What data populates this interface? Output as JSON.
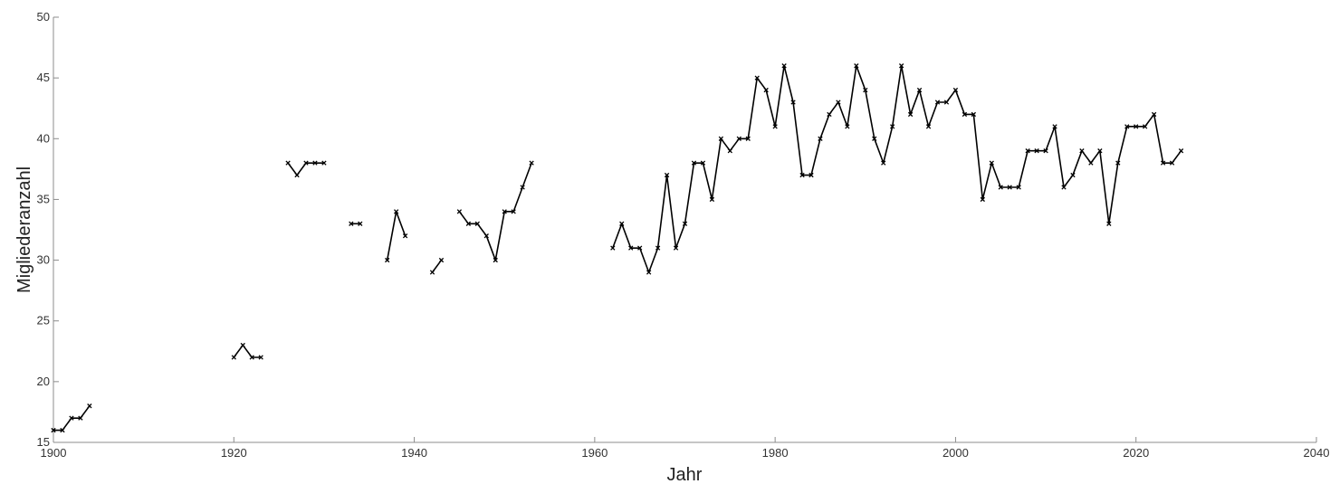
{
  "chart_data": {
    "type": "line",
    "title": "",
    "xlabel": "Jahr",
    "ylabel": "Migliederanzahl",
    "xlim": [
      1900,
      2040
    ],
    "ylim": [
      15,
      50
    ],
    "xticks": [
      1900,
      1920,
      1940,
      1960,
      1980,
      2000,
      2020,
      2040
    ],
    "yticks": [
      15,
      20,
      25,
      30,
      35,
      40,
      45,
      50
    ],
    "grid": false,
    "legend": "none",
    "line_color": "#000000",
    "marker": "x",
    "series": [
      {
        "segments": [
          [
            [
              1900,
              16
            ],
            [
              1901,
              16
            ],
            [
              1902,
              17
            ],
            [
              1903,
              17
            ],
            [
              1904,
              18
            ]
          ],
          [
            [
              1920,
              22
            ],
            [
              1921,
              23
            ],
            [
              1922,
              22
            ],
            [
              1923,
              22
            ]
          ],
          [
            [
              1926,
              38
            ],
            [
              1927,
              37
            ],
            [
              1928,
              38
            ],
            [
              1929,
              38
            ],
            [
              1930,
              38
            ]
          ],
          [
            [
              1933,
              33
            ],
            [
              1934,
              33
            ]
          ],
          [
            [
              1937,
              30
            ],
            [
              1938,
              34
            ],
            [
              1939,
              32
            ]
          ],
          [
            [
              1942,
              29
            ],
            [
              1943,
              30
            ]
          ],
          [
            [
              1945,
              34
            ],
            [
              1946,
              33
            ],
            [
              1947,
              33
            ],
            [
              1948,
              32
            ],
            [
              1949,
              30
            ],
            [
              1950,
              34
            ],
            [
              1951,
              34
            ],
            [
              1952,
              36
            ],
            [
              1953,
              38
            ]
          ],
          [
            [
              1962,
              31
            ],
            [
              1963,
              33
            ],
            [
              1964,
              31
            ],
            [
              1965,
              31
            ],
            [
              1966,
              29
            ],
            [
              1967,
              31
            ],
            [
              1968,
              37
            ],
            [
              1969,
              31
            ],
            [
              1970,
              33
            ],
            [
              1971,
              38
            ],
            [
              1972,
              38
            ],
            [
              1973,
              35
            ],
            [
              1974,
              40
            ],
            [
              1975,
              39
            ],
            [
              1976,
              40
            ],
            [
              1977,
              40
            ],
            [
              1978,
              45
            ],
            [
              1979,
              44
            ],
            [
              1980,
              41
            ],
            [
              1981,
              46
            ],
            [
              1982,
              43
            ],
            [
              1983,
              37
            ],
            [
              1984,
              37
            ],
            [
              1985,
              40
            ],
            [
              1986,
              42
            ],
            [
              1987,
              43
            ],
            [
              1988,
              41
            ],
            [
              1989,
              46
            ],
            [
              1990,
              44
            ],
            [
              1991,
              40
            ],
            [
              1992,
              38
            ],
            [
              1993,
              41
            ],
            [
              1994,
              46
            ],
            [
              1995,
              42
            ],
            [
              1996,
              44
            ],
            [
              1997,
              41
            ],
            [
              1998,
              43
            ],
            [
              1999,
              43
            ],
            [
              2000,
              44
            ],
            [
              2001,
              42
            ],
            [
              2002,
              42
            ],
            [
              2003,
              35
            ],
            [
              2004,
              38
            ],
            [
              2005,
              36
            ],
            [
              2006,
              36
            ],
            [
              2007,
              36
            ],
            [
              2008,
              39
            ],
            [
              2009,
              39
            ],
            [
              2010,
              39
            ],
            [
              2011,
              41
            ],
            [
              2012,
              36
            ],
            [
              2013,
              37
            ],
            [
              2014,
              39
            ],
            [
              2015,
              38
            ],
            [
              2016,
              39
            ],
            [
              2017,
              33
            ],
            [
              2018,
              38
            ],
            [
              2019,
              41
            ],
            [
              2020,
              41
            ],
            [
              2021,
              41
            ],
            [
              2022,
              42
            ],
            [
              2023,
              38
            ],
            [
              2024,
              38
            ],
            [
              2025,
              39
            ]
          ]
        ]
      }
    ]
  }
}
